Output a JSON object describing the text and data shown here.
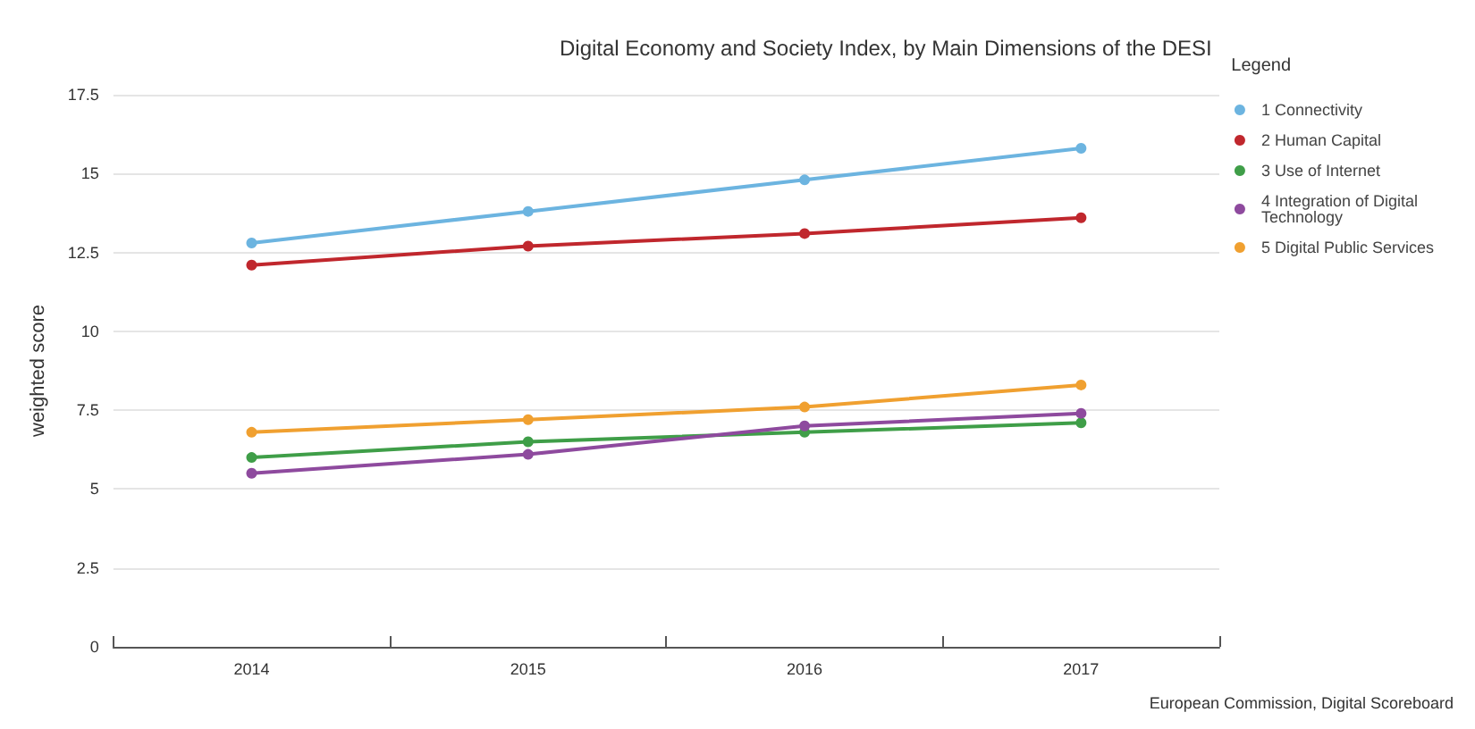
{
  "chart_data": {
    "type": "line",
    "title": "Digital Economy and Society Index, by Main Dimensions of the DESI",
    "ylabel": "weighted score",
    "legend_title": "Legend",
    "categories": [
      "2014",
      "2015",
      "2016",
      "2017"
    ],
    "series": [
      {
        "name": "1 Connectivity",
        "color": "#6cb4e0",
        "values": [
          12.8,
          13.8,
          14.8,
          15.8
        ]
      },
      {
        "name": "2 Human Capital",
        "color": "#c0272d",
        "values": [
          12.1,
          12.7,
          13.1,
          13.6
        ]
      },
      {
        "name": "3 Use of Internet",
        "color": "#3f9e48",
        "values": [
          6.0,
          6.5,
          6.8,
          7.1
        ]
      },
      {
        "name": "4 Integration of Digital\nTechnology",
        "color": "#8e4a9e",
        "values": [
          5.5,
          6.1,
          7.0,
          7.4
        ]
      },
      {
        "name": "5 Digital Public Services",
        "color": "#f0a030",
        "values": [
          6.8,
          7.2,
          7.6,
          8.3
        ]
      }
    ],
    "ylim": [
      0,
      17.5
    ],
    "yticks": [
      0,
      2.5,
      5,
      7.5,
      10,
      12.5,
      15,
      17.5
    ],
    "grid": "y",
    "legend": "top right",
    "marker": "circle",
    "line_style": "solid",
    "annotations": [
      "European Commission, Digital Scoreboard"
    ]
  }
}
